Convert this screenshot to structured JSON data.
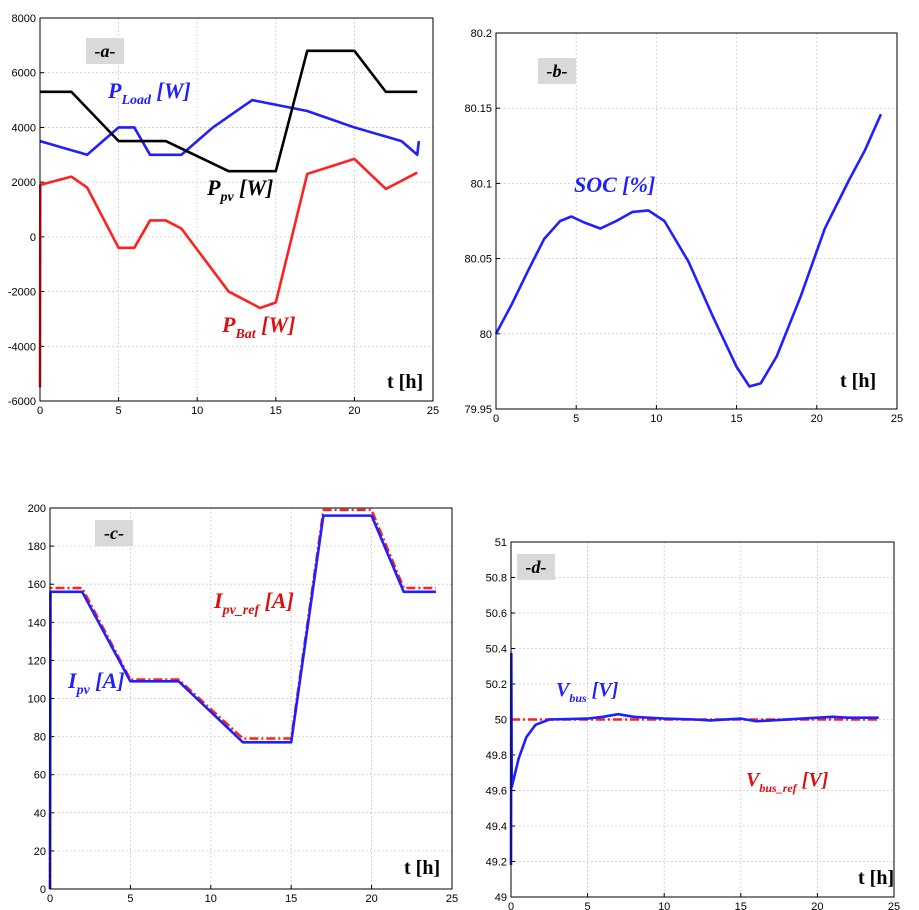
{
  "chart_data": [
    {
      "type": "line",
      "panel": "-a-",
      "xlabel": "t [h]",
      "xlim": [
        0,
        25
      ],
      "ylim": [
        -6000,
        8000
      ],
      "xticks": [
        "0",
        "5",
        "10",
        "15",
        "20",
        "25"
      ],
      "yticks": [
        "-6000",
        "-4000",
        "-2000",
        "0",
        "2000",
        "4000",
        "6000",
        "8000"
      ],
      "grid": true,
      "series": [
        {
          "name": "P_Load [W]",
          "color": "#1f1fff",
          "style": "solid",
          "points": [
            [
              0,
              3500
            ],
            [
              3,
              3000
            ],
            [
              5,
              4000
            ],
            [
              6,
              4000
            ],
            [
              7,
              3000
            ],
            [
              9,
              3000
            ],
            [
              11,
              4000
            ],
            [
              13.5,
              5000
            ],
            [
              17,
              4600
            ],
            [
              20,
              4000
            ],
            [
              23,
              3500
            ],
            [
              24,
              3000
            ],
            [
              24.1,
              3500
            ]
          ]
        },
        {
          "name": "P_pv [W]",
          "color": "#000000",
          "style": "solid",
          "points": [
            [
              0,
              5300
            ],
            [
              2,
              5300
            ],
            [
              5,
              3500
            ],
            [
              8,
              3500
            ],
            [
              12,
              2400
            ],
            [
              15,
              2400
            ],
            [
              17,
              6800
            ],
            [
              20,
              6800
            ],
            [
              22,
              5300
            ],
            [
              24,
              5300
            ]
          ]
        },
        {
          "name": "P_Bat [W]",
          "color": "#ff2020",
          "style": "solid",
          "points": [
            [
              0,
              -5500
            ],
            [
              0.02,
              1900
            ],
            [
              2,
              2200
            ],
            [
              3,
              1800
            ],
            [
              5,
              -400
            ],
            [
              6,
              -400
            ],
            [
              7,
              600
            ],
            [
              8,
              600
            ],
            [
              9,
              300
            ],
            [
              12,
              -2000
            ],
            [
              14,
              -2600
            ],
            [
              15,
              -2400
            ],
            [
              17,
              2300
            ],
            [
              20,
              2850
            ],
            [
              22,
              1750
            ],
            [
              24,
              2350
            ]
          ]
        }
      ],
      "annotations": [
        {
          "main": "P",
          "sub": "Load",
          "rest": " [W]",
          "color": "#1f1fff"
        },
        {
          "main": "P",
          "sub": "pv",
          "rest": " [W]",
          "color": "#000000"
        },
        {
          "main": "P",
          "sub": "Bat",
          "rest": " [W]",
          "color": "#dd1010"
        }
      ]
    },
    {
      "type": "line",
      "panel": "-b-",
      "xlabel": "t [h]",
      "xlim": [
        0,
        25
      ],
      "ylim": [
        79.95,
        80.2
      ],
      "xticks": [
        "0",
        "5",
        "10",
        "15",
        "20",
        "25"
      ],
      "yticks": [
        "79.95",
        "80",
        "80.05",
        "80.1",
        "80.15",
        "80.2"
      ],
      "grid": true,
      "series": [
        {
          "name": "SOC [%]",
          "color": "#1f1fff",
          "style": "solid",
          "points": [
            [
              0,
              80.0
            ],
            [
              1,
              80.02
            ],
            [
              2,
              80.042
            ],
            [
              3,
              80.063
            ],
            [
              4,
              80.075
            ],
            [
              4.7,
              80.078
            ],
            [
              5.5,
              80.074
            ],
            [
              6.5,
              80.07
            ],
            [
              7.5,
              80.075
            ],
            [
              8.5,
              80.081
            ],
            [
              9.5,
              80.082
            ],
            [
              10.5,
              80.075
            ],
            [
              12,
              80.048
            ],
            [
              13.5,
              80.012
            ],
            [
              15,
              79.978
            ],
            [
              15.8,
              79.965
            ],
            [
              16.5,
              79.967
            ],
            [
              17.5,
              79.985
            ],
            [
              19,
              80.025
            ],
            [
              20.5,
              80.07
            ],
            [
              22,
              80.102
            ],
            [
              23,
              80.122
            ],
            [
              24,
              80.146
            ]
          ]
        }
      ],
      "annotations": [
        {
          "main": "SOC [%]",
          "sub": "",
          "rest": "",
          "color": "#1f1fff"
        }
      ]
    },
    {
      "type": "line",
      "panel": "-c-",
      "xlabel": "t [h]",
      "xlim": [
        0,
        25
      ],
      "ylim": [
        0,
        200
      ],
      "xticks": [
        "0",
        "5",
        "10",
        "15",
        "20",
        "25"
      ],
      "yticks": [
        "0",
        "20",
        "40",
        "60",
        "80",
        "100",
        "120",
        "140",
        "160",
        "180",
        "200"
      ],
      "grid": true,
      "series": [
        {
          "name": "I_pv_ref [A]",
          "color": "#ff2020",
          "style": "dashdot",
          "points": [
            [
              0,
              0
            ],
            [
              0.03,
              158
            ],
            [
              2,
              158
            ],
            [
              5,
              110
            ],
            [
              8,
              110
            ],
            [
              12,
              79
            ],
            [
              15,
              79
            ],
            [
              17,
              199
            ],
            [
              20,
              199
            ],
            [
              22,
              158
            ],
            [
              24,
              158
            ]
          ]
        },
        {
          "name": "I_pv [A]",
          "color": "#1f1fff",
          "style": "solid",
          "points": [
            [
              0,
              0
            ],
            [
              0.03,
              156
            ],
            [
              2,
              156
            ],
            [
              5,
              109
            ],
            [
              8,
              109
            ],
            [
              12,
              77
            ],
            [
              15,
              77
            ],
            [
              17,
              196
            ],
            [
              20,
              196
            ],
            [
              22,
              156
            ],
            [
              24,
              156
            ]
          ]
        }
      ],
      "annotations": [
        {
          "main": "I",
          "sub": "pv_ref",
          "rest": " [A]",
          "color": "#dd1010"
        },
        {
          "main": "I",
          "sub": "pv",
          "rest": " [A]",
          "color": "#1f1fff"
        }
      ]
    },
    {
      "type": "line",
      "panel": "-d-",
      "xlabel": "t [h]",
      "xlim": [
        0,
        25
      ],
      "ylim": [
        49,
        51
      ],
      "xticks": [
        "0",
        "5",
        "10",
        "15",
        "20",
        "25"
      ],
      "yticks": [
        "49",
        "49.2",
        "49.4",
        "49.6",
        "49.8",
        "50",
        "50.2",
        "50.4",
        "50.6",
        "50.8",
        "51"
      ],
      "grid": true,
      "series": [
        {
          "name": "V_bus_ref [V]",
          "color": "#ff2020",
          "style": "dashdot",
          "points": [
            [
              0,
              50.0
            ],
            [
              24,
              50.0
            ]
          ]
        },
        {
          "name": "V_bus [V]",
          "color": "#1f1fff",
          "style": "solid",
          "points": [
            [
              0,
              49.18
            ],
            [
              0.02,
              50.37
            ],
            [
              0.05,
              49.62
            ],
            [
              0.5,
              49.78
            ],
            [
              1,
              49.9
            ],
            [
              1.6,
              49.97
            ],
            [
              2.5,
              50.0
            ],
            [
              5,
              50.005
            ],
            [
              6,
              50.015
            ],
            [
              7,
              50.03
            ],
            [
              8,
              50.015
            ],
            [
              10,
              50.005
            ],
            [
              12,
              50.0
            ],
            [
              13,
              49.995
            ],
            [
              15,
              50.005
            ],
            [
              16,
              49.99
            ],
            [
              17,
              49.995
            ],
            [
              19,
              50.005
            ],
            [
              21,
              50.015
            ],
            [
              22,
              50.01
            ],
            [
              24,
              50.01
            ]
          ]
        }
      ],
      "annotations": [
        {
          "main": "V",
          "sub": "bus",
          "rest": " [V]",
          "color": "#1f1fff"
        },
        {
          "main": "V",
          "sub": "bus_ref",
          "rest": " [V]",
          "color": "#dd1010"
        }
      ]
    }
  ]
}
